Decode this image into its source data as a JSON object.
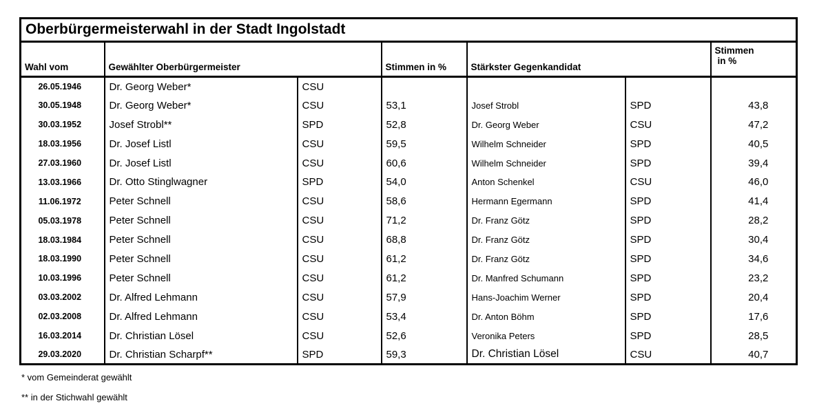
{
  "title": "Oberbürgermeisterwahl in der Stadt Ingolstadt",
  "columns": {
    "wahl_vom": "Wahl vom",
    "gewaehlter_ob": "Gewählter Oberbürgermeister",
    "stimmen_ob": "Stimmen in %",
    "gegenkandidat": "Stärkster Gegenkandidat",
    "stimmen_gegen_line1": "Stimmen",
    "stimmen_gegen_line2": "in %"
  },
  "rows": [
    {
      "date": "26.05.1946",
      "winner": "Dr. Georg Weber*",
      "winner_party": "CSU",
      "winner_pct": "",
      "opponent": "",
      "opponent_party": "",
      "opponent_pct": ""
    },
    {
      "date": "30.05.1948",
      "winner": "Dr. Georg Weber*",
      "winner_party": "CSU",
      "winner_pct": "53,1",
      "opponent": "Josef Strobl",
      "opponent_party": "SPD",
      "opponent_pct": "43,8"
    },
    {
      "date": "30.03.1952",
      "winner": "Josef Strobl**",
      "winner_party": "SPD",
      "winner_pct": "52,8",
      "opponent": "Dr. Georg Weber",
      "opponent_party": "CSU",
      "opponent_pct": "47,2"
    },
    {
      "date": "18.03.1956",
      "winner": "Dr. Josef Listl",
      "winner_party": "CSU",
      "winner_pct": "59,5",
      "opponent": "Wilhelm Schneider",
      "opponent_party": "SPD",
      "opponent_pct": "40,5"
    },
    {
      "date": "27.03.1960",
      "winner": "Dr. Josef Listl",
      "winner_party": "CSU",
      "winner_pct": "60,6",
      "opponent": "Wilhelm Schneider",
      "opponent_party": "SPD",
      "opponent_pct": "39,4"
    },
    {
      "date": "13.03.1966",
      "winner": "Dr. Otto Stinglwagner",
      "winner_party": "SPD",
      "winner_pct": "54,0",
      "opponent": "Anton Schenkel",
      "opponent_party": "CSU",
      "opponent_pct": "46,0"
    },
    {
      "date": "11.06.1972",
      "winner": "Peter Schnell",
      "winner_party": "CSU",
      "winner_pct": "58,6",
      "opponent": "Hermann Egermann",
      "opponent_party": "SPD",
      "opponent_pct": "41,4"
    },
    {
      "date": "05.03.1978",
      "winner": "Peter Schnell",
      "winner_party": "CSU",
      "winner_pct": "71,2",
      "opponent": "Dr. Franz Götz",
      "opponent_party": "SPD",
      "opponent_pct": "28,2"
    },
    {
      "date": "18.03.1984",
      "winner": "Peter Schnell",
      "winner_party": "CSU",
      "winner_pct": "68,8",
      "opponent": "Dr. Franz Götz",
      "opponent_party": "SPD",
      "opponent_pct": "30,4"
    },
    {
      "date": "18.03.1990",
      "winner": "Peter Schnell",
      "winner_party": "CSU",
      "winner_pct": "61,2",
      "opponent": "Dr. Franz Götz",
      "opponent_party": "SPD",
      "opponent_pct": "34,6"
    },
    {
      "date": "10.03.1996",
      "winner": "Peter Schnell",
      "winner_party": "CSU",
      "winner_pct": "61,2",
      "opponent": "Dr. Manfred Schumann",
      "opponent_party": "SPD",
      "opponent_pct": "23,2"
    },
    {
      "date": "03.03.2002",
      "winner": "Dr. Alfred Lehmann",
      "winner_party": "CSU",
      "winner_pct": "57,9",
      "opponent": "Hans-Joachim Werner",
      "opponent_party": "SPD",
      "opponent_pct": "20,4"
    },
    {
      "date": "02.03.2008",
      "winner": "Dr. Alfred Lehmann",
      "winner_party": "CSU",
      "winner_pct": "53,4",
      "opponent": "Dr. Anton Böhm",
      "opponent_party": "SPD",
      "opponent_pct": "17,6"
    },
    {
      "date": "16.03.2014",
      "winner": "Dr. Christian Lösel",
      "winner_party": "CSU",
      "winner_pct": "52,6",
      "opponent": "Veronika Peters",
      "opponent_party": "SPD",
      "opponent_pct": "28,5"
    },
    {
      "date": "29.03.2020",
      "winner": "Dr. Christian Scharpf**",
      "winner_party": "SPD",
      "winner_pct": "59,3",
      "opponent": "Dr. Christian Lösel",
      "opponent_party": "CSU",
      "opponent_pct": "40,7"
    }
  ],
  "footnotes": {
    "asterisk": "* vom Gemeinderat gewählt",
    "double_asterisk": "** in der Stichwahl gewählt"
  }
}
